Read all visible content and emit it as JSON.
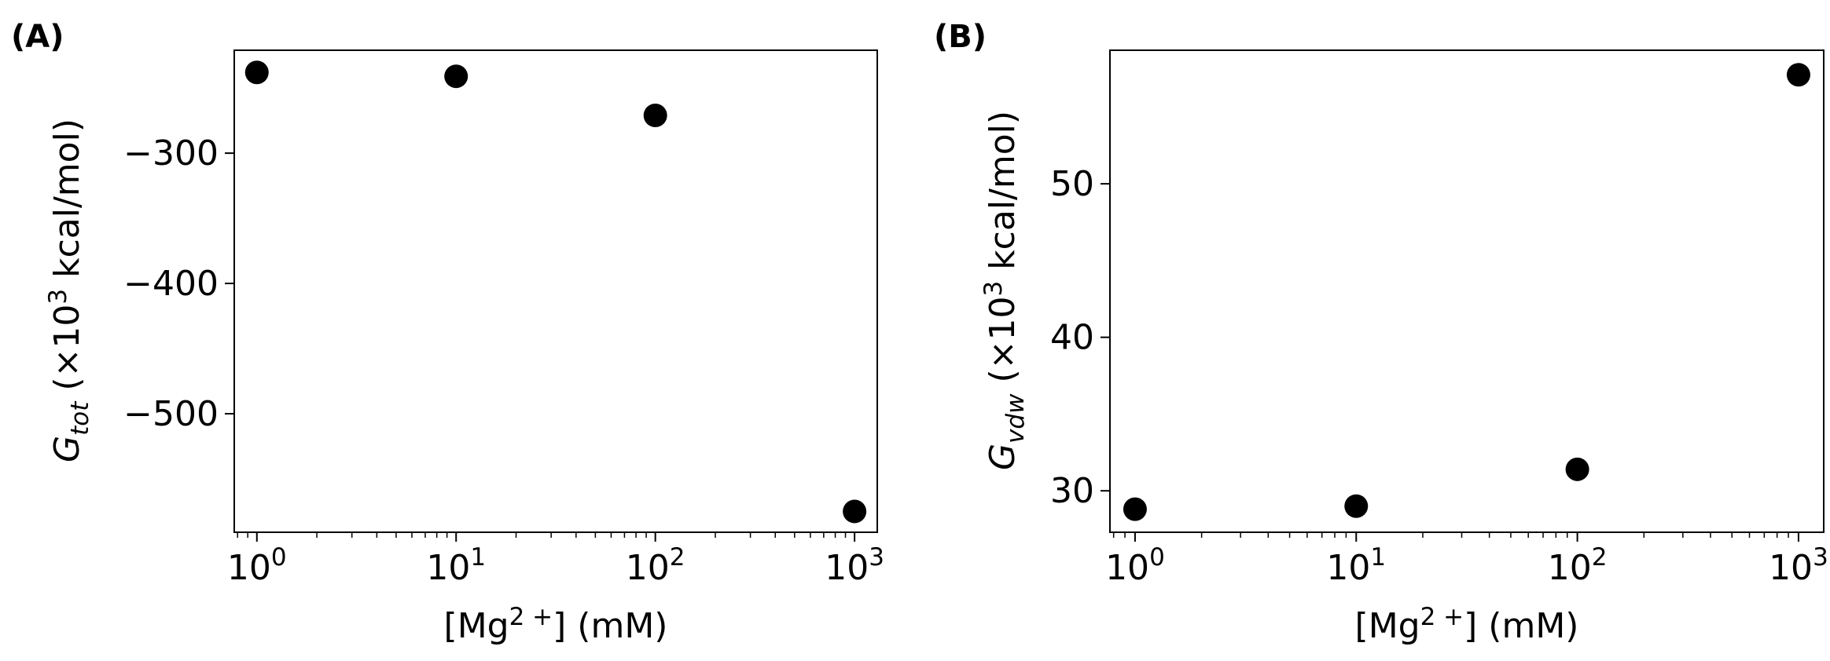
{
  "chart_data": [
    {
      "type": "scatter",
      "panel_label": "(A)",
      "x_scale": "log",
      "xlim": [
        0.77,
        1300
      ],
      "ylim": [
        -591,
        -221
      ],
      "x": [
        1,
        10,
        100,
        1000
      ],
      "y": [
        -238,
        -241,
        -271,
        -575
      ],
      "x_ticks": [
        1,
        10,
        100,
        1000
      ],
      "x_tick_labels": [
        "10",
        "10",
        "10",
        "10"
      ],
      "x_tick_exponents": [
        "0",
        "1",
        "2",
        "3"
      ],
      "y_ticks": [
        -300,
        -400,
        -500
      ],
      "y_tick_labels": [
        "−300",
        "−400",
        "−500"
      ],
      "xlabel": {
        "pre": "[Mg",
        "sup": "2 +",
        "post": "] (mM)"
      },
      "ylabel": {
        "symbol": "G",
        "sub": "tot",
        "pre": " (×10",
        "sup": "3",
        "post": " kcal/mol)"
      },
      "marker_color": "#000000",
      "grid": false
    },
    {
      "type": "scatter",
      "panel_label": "(B)",
      "x_scale": "log",
      "xlim": [
        0.77,
        1300
      ],
      "ylim": [
        27.3,
        58.7
      ],
      "x": [
        1,
        10,
        100,
        1000
      ],
      "y": [
        28.8,
        29.0,
        31.4,
        57.1
      ],
      "x_ticks": [
        1,
        10,
        100,
        1000
      ],
      "x_tick_labels": [
        "10",
        "10",
        "10",
        "10"
      ],
      "x_tick_exponents": [
        "0",
        "1",
        "2",
        "3"
      ],
      "y_ticks": [
        30,
        40,
        50
      ],
      "y_tick_labels": [
        "30",
        "40",
        "50"
      ],
      "xlabel": {
        "pre": "[Mg",
        "sup": "2 +",
        "post": "] (mM)"
      },
      "ylabel": {
        "symbol": "G",
        "sub": "vdw",
        "pre": " (×10",
        "sup": "3",
        "post": " kcal/mol)"
      },
      "marker_color": "#000000",
      "grid": false
    }
  ]
}
